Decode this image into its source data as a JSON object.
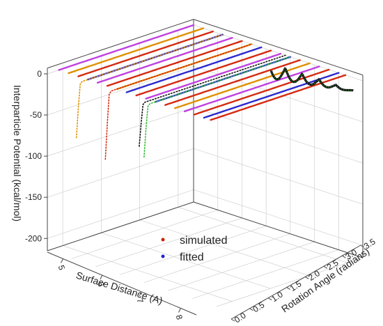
{
  "chart_data": {
    "type": "scatter",
    "zlabel": "Interparticle Potential (kcal/mol)",
    "xlabel": "Surface Distance (A)",
    "ylabel": "Rotation Angle (radians)",
    "z_ticks": [
      "0",
      "-50",
      "-100",
      "-150",
      "-200"
    ],
    "x_ticks": [
      "5",
      "6",
      "7",
      "8"
    ],
    "y_ticks": [
      "0.0",
      "0.5",
      "1.0",
      "1.5",
      "2.0",
      "2.5",
      "3.0",
      "3.5"
    ],
    "z_range": [
      -215,
      0
    ],
    "x_range": [
      4.6,
      8.4
    ],
    "y_range": [
      0,
      3.5
    ],
    "grid": true,
    "legend_position": "bottom-center",
    "legend": [
      {
        "label": "simulated",
        "color": "#cc2200"
      },
      {
        "label": "fitted",
        "color": "#2222cc"
      }
    ],
    "colors": {
      "simulated": "#d42a10",
      "fitted": "#2a2ad0",
      "orange": "#e09000",
      "magenta": "#c040e0",
      "black": "#111111",
      "green": "#33bb33",
      "axis": "#444444",
      "grid": "#cfcfcf"
    },
    "series_note_free": true
  }
}
